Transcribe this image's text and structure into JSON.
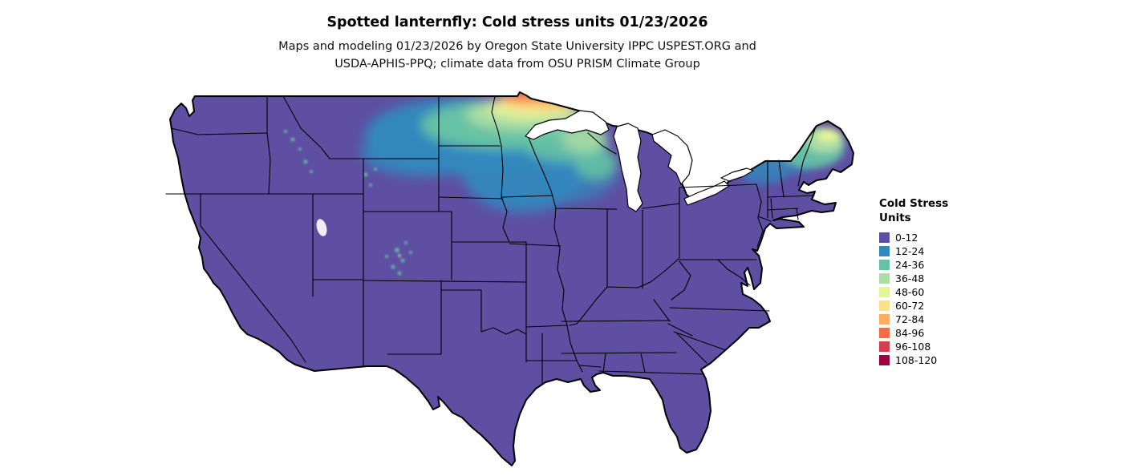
{
  "title": "Spotted lanternfly: Cold stress units 01/23/2026",
  "subtitle_line1": "Maps and modeling 01/23/2026 by Oregon State University IPPC USPEST.ORG and",
  "subtitle_line2": "USDA-APHIS-PPQ; climate data from OSU PRISM Climate Group",
  "legend": {
    "title_line1": "Cold Stress",
    "title_line2": "Units",
    "items": [
      {
        "label": "0-12",
        "color": "#5e4fa2"
      },
      {
        "label": "12-24",
        "color": "#3288bd"
      },
      {
        "label": "24-36",
        "color": "#66c2a5"
      },
      {
        "label": "36-48",
        "color": "#abdda4"
      },
      {
        "label": "48-60",
        "color": "#e6f598"
      },
      {
        "label": "60-72",
        "color": "#fee08b"
      },
      {
        "label": "72-84",
        "color": "#fdae61"
      },
      {
        "label": "84-96",
        "color": "#f46d43"
      },
      {
        "label": "96-108",
        "color": "#d53e4f"
      },
      {
        "label": "108-120",
        "color": "#9e0142"
      }
    ]
  },
  "map": {
    "base_color": "#5e4fa2",
    "border_color": "#000000",
    "water_color": "#ffffff"
  }
}
